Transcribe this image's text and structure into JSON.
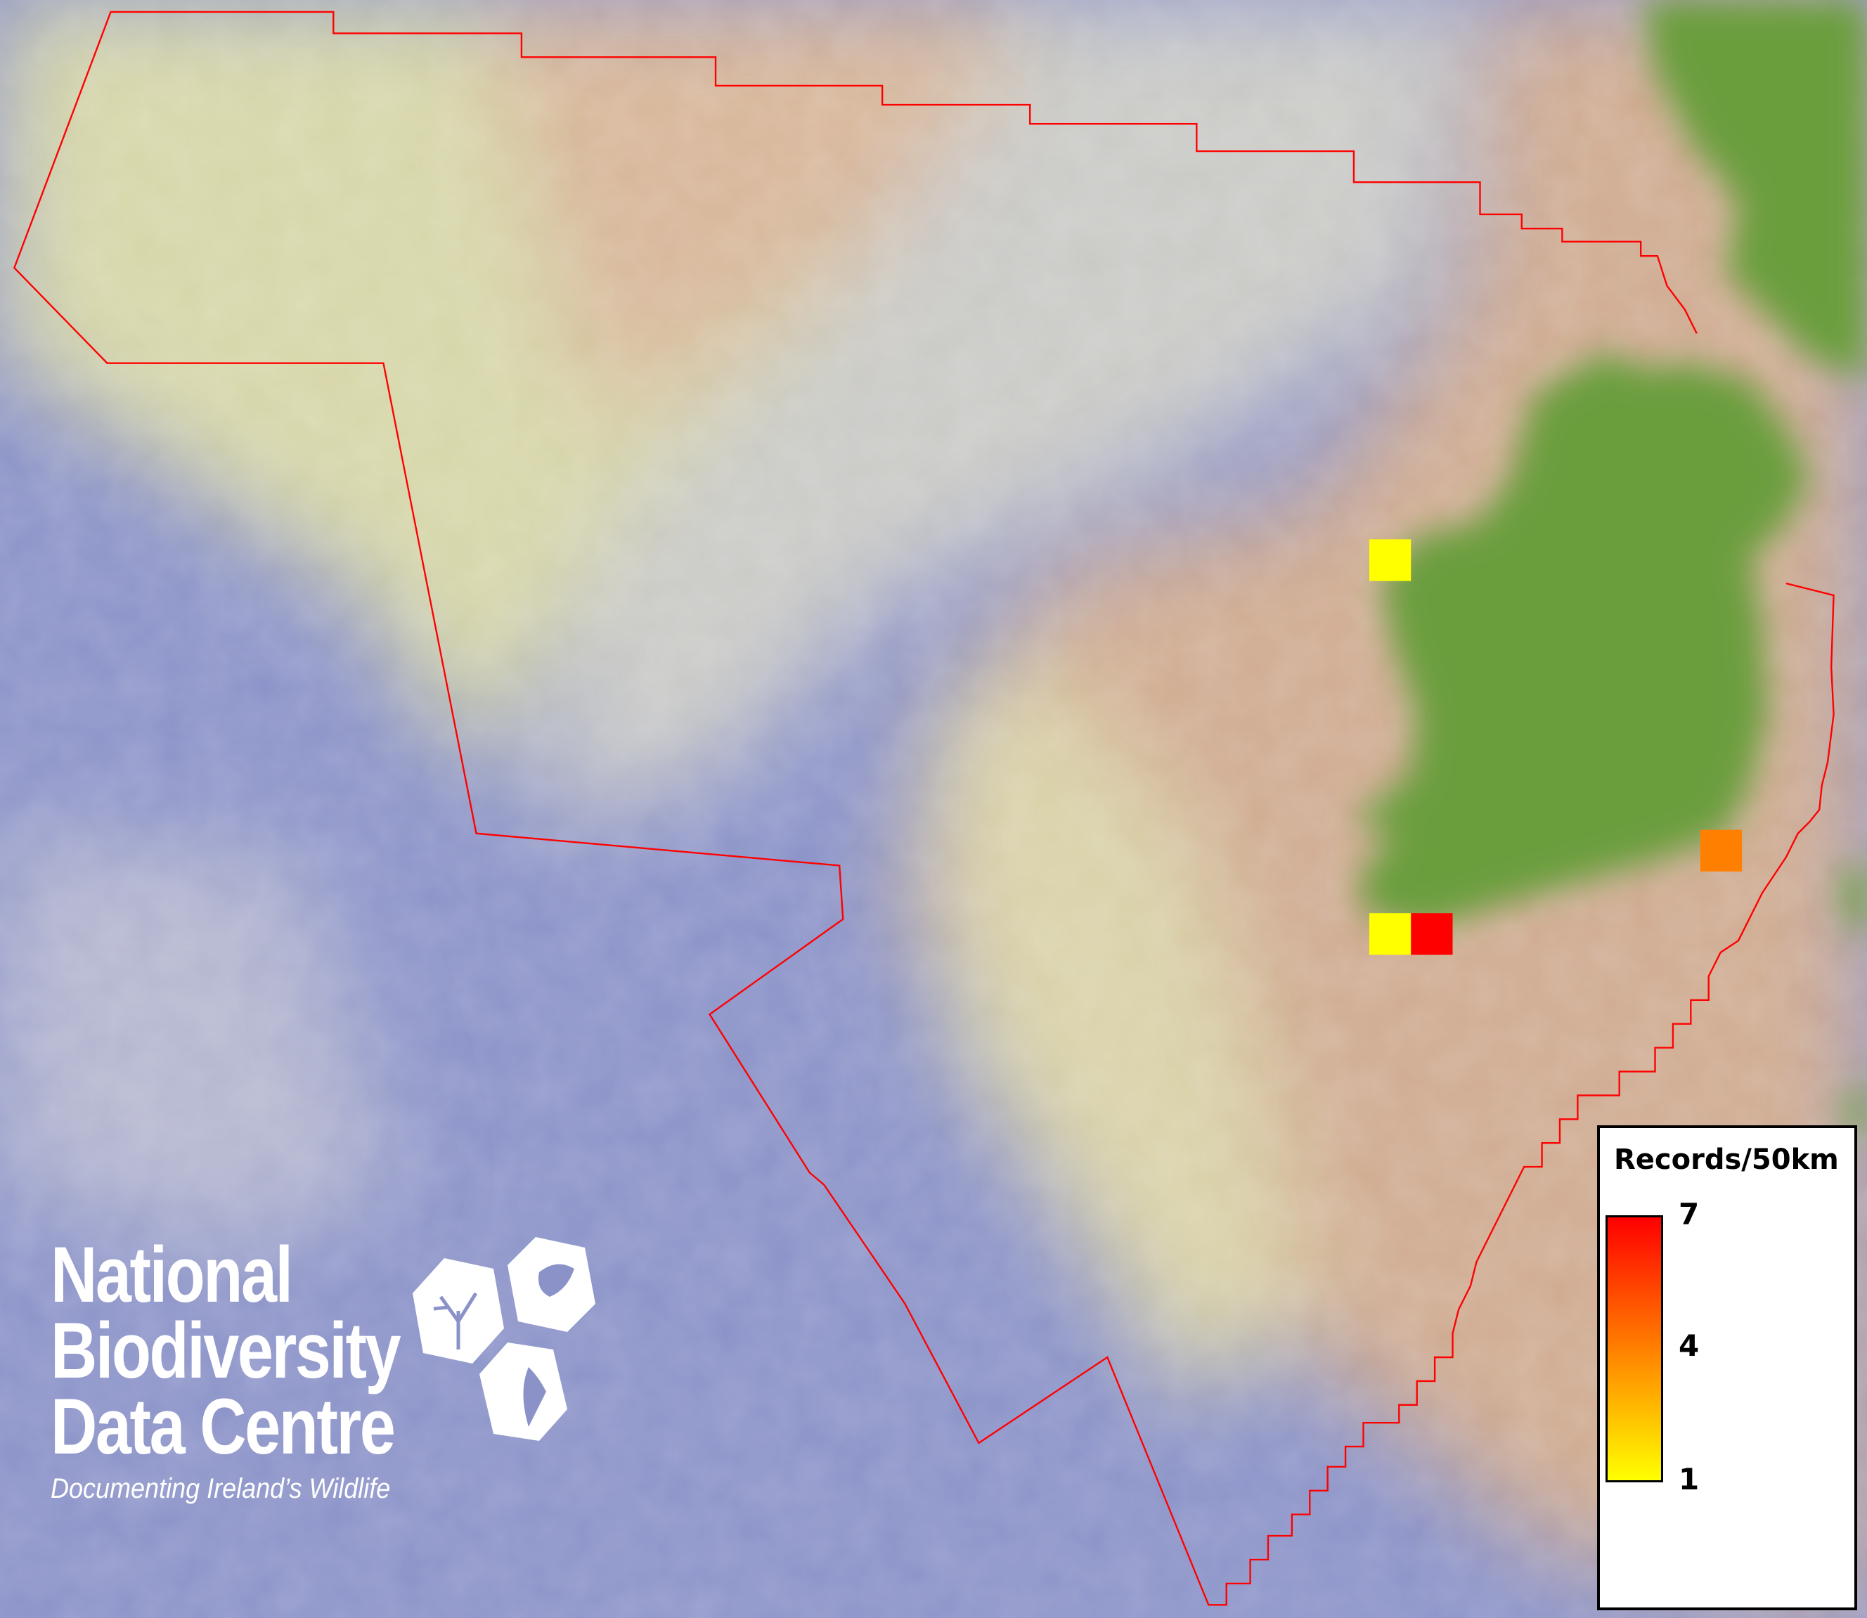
{
  "map": {
    "boundary_color": "#ff0000",
    "land_color": "#6a9e3e",
    "shelf_color": "#cfaa90",
    "ocean_color": "#8a92c8",
    "grid_squares": [
      {
        "records": 1
      },
      {
        "records": 1
      },
      {
        "records": 7
      },
      {
        "records": 4
      }
    ]
  },
  "legend": {
    "title": "Records/50km",
    "min": 1,
    "mid": 4,
    "max": 7,
    "min_label": "1",
    "mid_label": "4",
    "max_label": "7",
    "color_min": "#ffff00",
    "color_mid": "#ff8000",
    "color_max": "#ff0000"
  },
  "logo": {
    "line1": "National",
    "line2": "Biodiversity",
    "line3": "Data Centre",
    "tagline": "Documenting Ireland’s Wildlife"
  }
}
